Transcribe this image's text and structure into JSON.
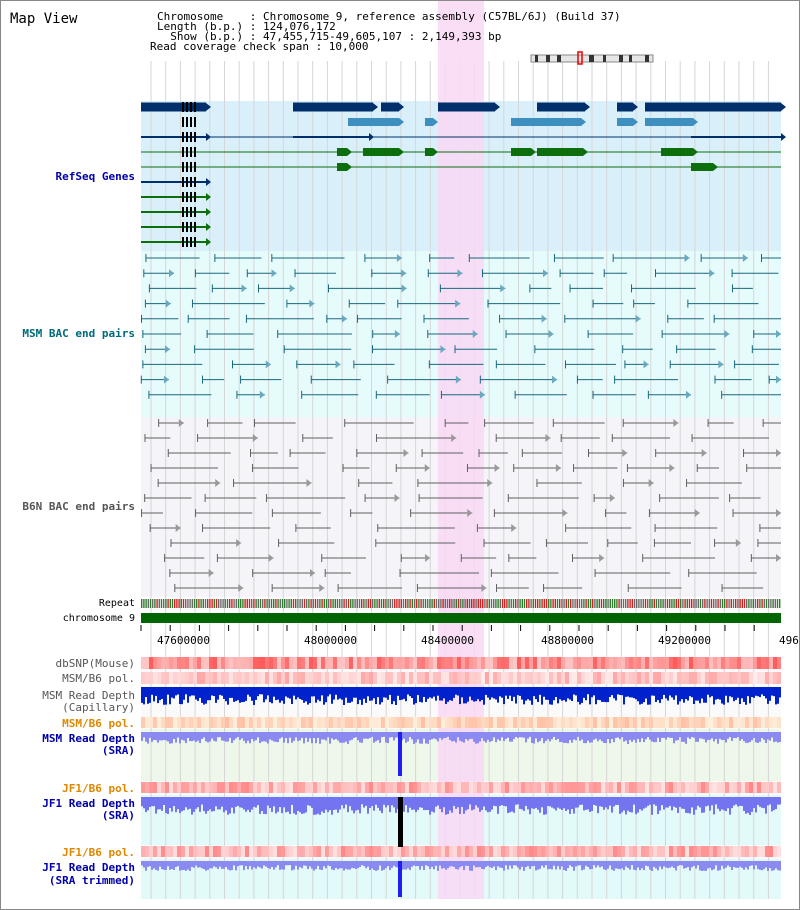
{
  "page": {
    "title": "Map View"
  },
  "header": {
    "line1": "Chromosome    : Chromosome 9, reference assembly (C57BL/6J) (Build 37)",
    "line2": "Length (b.p.) : 124,076,172",
    "line3": "  Show (b.p.) : 47,455,715-49,605,107 : 2,149,393 bp",
    "line4": "Read coverage check span : 10,000"
  },
  "colors": {
    "refseq_bg": "#d9f0fa",
    "msm_bac_bg": "#e6fbfb",
    "b6n_bac_bg": "#f4f4f9",
    "highlight": "#f8d8f4",
    "gene_dark": "#002f6c",
    "gene_mid": "#3d8fc0",
    "gene_green": "#0c6e0c",
    "msm_pair": "#18687e",
    "b6n_pair": "#606060",
    "chromosome_bar": "#006400",
    "label_blue": "#0000aa",
    "label_teal": "#006a7a",
    "label_gray": "#555555",
    "label_orange": "#dd8800"
  },
  "tracks": {
    "refseq": "RefSeq Genes",
    "msm_bac": "MSM BAC end pairs",
    "b6n_bac": "B6N BAC end pairs",
    "repeat": "Repeat",
    "chromosome": "chromosome 9",
    "dbsnp": "dbSNP(Mouse)",
    "msm_b6_pol_1": "MSM/B6 pol.",
    "msm_depth_cap_1": "MSM Read Depth",
    "msm_depth_cap_2": "(Capillary)",
    "msm_b6_pol_2": "MSM/B6 pol.",
    "msm_depth_sra_1": "MSM Read Depth",
    "msm_depth_sra_2": "(SRA)",
    "jf1_b6_pol_1": "JF1/B6 pol.",
    "jf1_depth_sra_1": "JF1 Read Depth",
    "jf1_depth_sra_2": "(SRA)",
    "jf1_b6_pol_2": "JF1/B6 pol.",
    "jf1_depth_trim_1": "JF1 Read Depth",
    "jf1_depth_trim_2": "(SRA trimmed)"
  },
  "axis": {
    "ticks": [
      "47600000",
      "48000000",
      "48400000",
      "48800000",
      "49200000",
      "496"
    ]
  }
}
